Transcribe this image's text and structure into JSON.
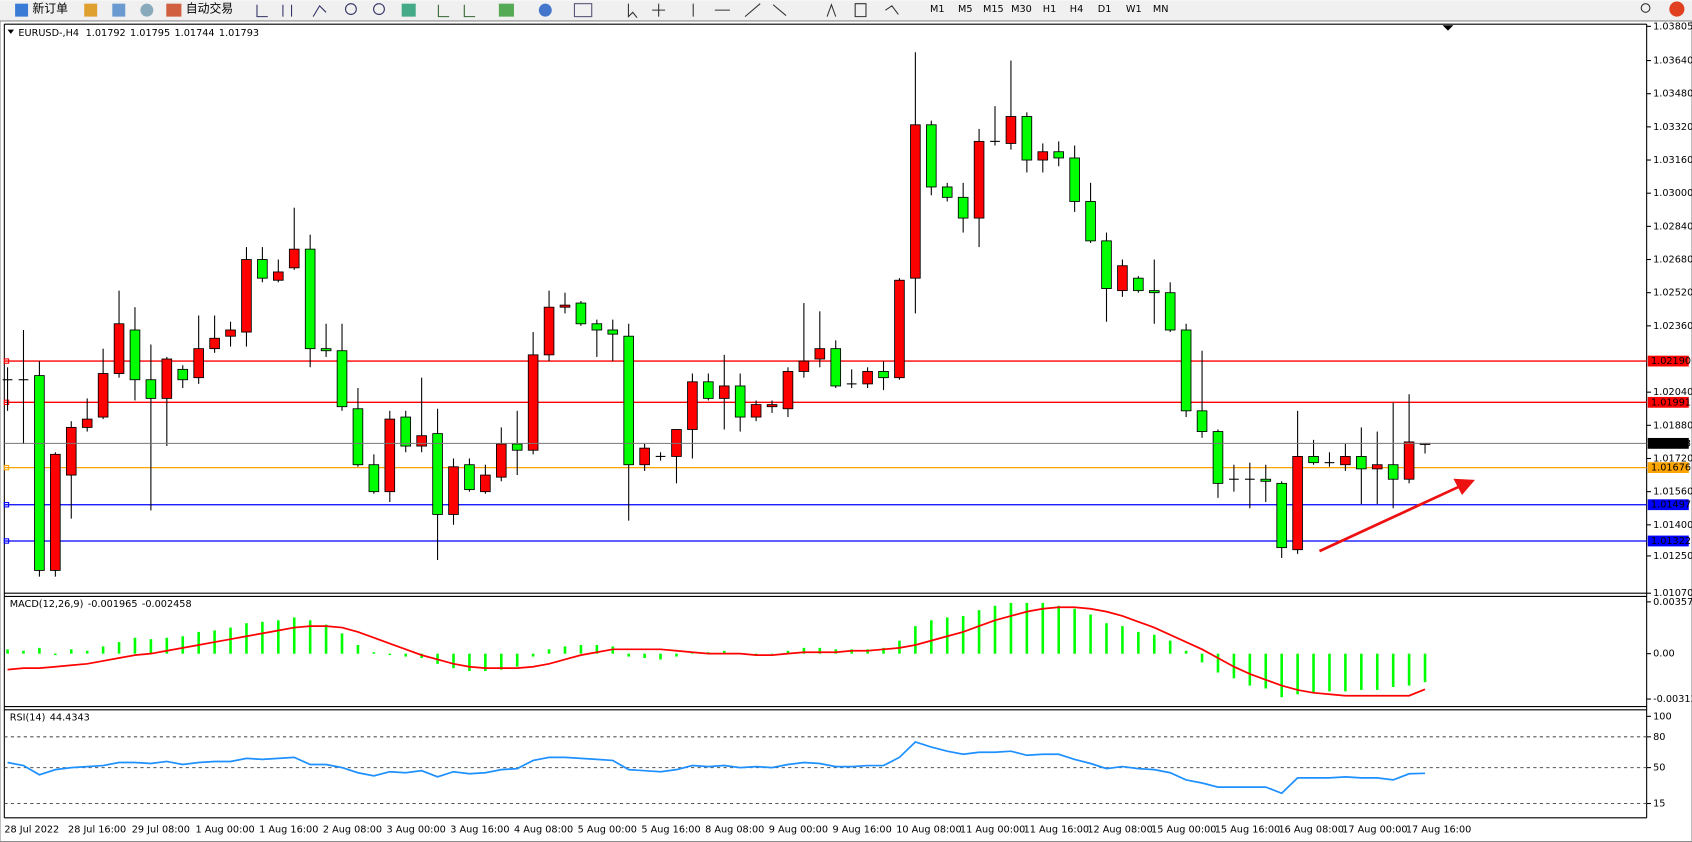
{
  "toolbar": {
    "new_order": "新订单",
    "auto_trading": "自动交易",
    "timeframes": [
      "M1",
      "M5",
      "M15",
      "M30",
      "H1",
      "H4",
      "D1",
      "W1",
      "MN"
    ]
  },
  "chart_data": [
    {
      "type": "candlestick",
      "title": "EURUSD-,H4",
      "categories": [
        "28 Jul 2022",
        null,
        null,
        null,
        "28 Jul 16:00",
        null,
        null,
        null,
        "29 Jul 08:00",
        null,
        null,
        null,
        "1 Aug 00:00",
        null,
        null,
        null,
        "1 Aug 16:00",
        null,
        null,
        null,
        "2 Aug 08:00",
        null,
        null,
        null,
        "3 Aug 00:00",
        null,
        null,
        null,
        "3 Aug 16:00",
        null,
        null,
        null,
        "4 Aug 08:00",
        null,
        null,
        null,
        "5 Aug 00:00",
        null,
        null,
        null,
        "5 Aug 16:00",
        null,
        null,
        null,
        "8 Aug 08:00",
        null,
        null,
        null,
        "9 Aug 00:00",
        null,
        null,
        null,
        "9 Aug 16:00",
        null,
        null,
        null,
        "10 Aug 08:00",
        null,
        null,
        null,
        "11 Aug 00:00",
        null,
        null,
        null,
        "11 Aug 16:00",
        null,
        null,
        null,
        "12 Aug 08:00",
        null,
        null,
        null,
        "15 Aug 00:00",
        null,
        null,
        null,
        "15 Aug 16:00",
        null,
        null,
        null,
        "16 Aug 08:00",
        null,
        null,
        null,
        "17 Aug 00:00",
        null,
        null,
        null,
        "17 Aug 16:00",
        null
      ],
      "candles": [
        [
          1.021,
          1.0216,
          1.0195,
          1.021
        ],
        [
          1.021,
          1.0234,
          1.0179,
          1.021
        ],
        [
          1.0212,
          1.0219,
          1.0115,
          1.0118
        ],
        [
          1.0118,
          1.0175,
          1.0115,
          1.0174
        ],
        [
          1.0164,
          1.019,
          1.0143,
          1.0187
        ],
        [
          1.0187,
          1.0201,
          1.0185,
          1.0191
        ],
        [
          1.0192,
          1.0225,
          1.0191,
          1.0213
        ],
        [
          1.0213,
          1.0253,
          1.0211,
          1.0237
        ],
        [
          1.0234,
          1.0245,
          1.02,
          1.021
        ],
        [
          1.021,
          1.0227,
          1.0147,
          1.0201
        ],
        [
          1.0201,
          1.0221,
          1.0178,
          1.022
        ],
        [
          1.0215,
          1.0217,
          1.0206,
          1.021
        ],
        [
          1.0211,
          1.0241,
          1.0208,
          1.0225
        ],
        [
          1.0225,
          1.0241,
          1.0223,
          1.023
        ],
        [
          1.0231,
          1.0238,
          1.0226,
          1.0234
        ],
        [
          1.0233,
          1.0274,
          1.0226,
          1.0268
        ],
        [
          1.0268,
          1.0274,
          1.0257,
          1.0259
        ],
        [
          1.0258,
          1.0268,
          1.0257,
          1.0262
        ],
        [
          1.0264,
          1.0293,
          1.0263,
          1.0273
        ],
        [
          1.0273,
          1.028,
          1.0216,
          1.0225
        ],
        [
          1.0225,
          1.0237,
          1.0221,
          1.0224
        ],
        [
          1.0224,
          1.0237,
          1.0195,
          1.0197
        ],
        [
          1.0196,
          1.0206,
          1.0168,
          1.0169
        ],
        [
          1.0169,
          1.0174,
          1.0155,
          1.0156
        ],
        [
          1.0156,
          1.0195,
          1.0151,
          1.0191
        ],
        [
          1.0192,
          1.0195,
          1.0175,
          1.0178
        ],
        [
          1.0178,
          1.0211,
          1.0175,
          1.0183
        ],
        [
          1.0184,
          1.0196,
          1.0123,
          1.0145
        ],
        [
          1.0145,
          1.0172,
          1.014,
          1.0168
        ],
        [
          1.0169,
          1.0172,
          1.0156,
          1.0157
        ],
        [
          1.0156,
          1.0169,
          1.0155,
          1.0164
        ],
        [
          1.0163,
          1.0187,
          1.0161,
          1.0179
        ],
        [
          1.0179,
          1.0195,
          1.0164,
          1.0176
        ],
        [
          1.0176,
          1.0233,
          1.0174,
          1.0222
        ],
        [
          1.0222,
          1.0253,
          1.0219,
          1.0245
        ],
        [
          1.0245,
          1.0252,
          1.0242,
          1.0246
        ],
        [
          1.0247,
          1.0248,
          1.0236,
          1.0237
        ],
        [
          1.0237,
          1.0239,
          1.0221,
          1.0234
        ],
        [
          1.0234,
          1.0239,
          1.0219,
          1.0232
        ],
        [
          1.0231,
          1.0237,
          1.0142,
          1.0169
        ],
        [
          1.0169,
          1.0179,
          1.0166,
          1.0177
        ],
        [
          1.0173,
          1.0175,
          1.0171,
          1.0173
        ],
        [
          1.0173,
          1.0186,
          1.016,
          1.0186
        ],
        [
          1.0186,
          1.0213,
          1.0172,
          1.0209
        ],
        [
          1.0209,
          1.0213,
          1.02,
          1.0201
        ],
        [
          1.0201,
          1.0222,
          1.0186,
          1.0207
        ],
        [
          1.0207,
          1.0213,
          1.0185,
          1.0192
        ],
        [
          1.0192,
          1.02,
          1.019,
          1.0198
        ],
        [
          1.0197,
          1.02,
          1.0194,
          1.0198
        ],
        [
          1.0196,
          1.0216,
          1.0192,
          1.0214
        ],
        [
          1.0214,
          1.0247,
          1.0211,
          1.0219
        ],
        [
          1.022,
          1.0243,
          1.0216,
          1.0225
        ],
        [
          1.0225,
          1.0229,
          1.0206,
          1.0207
        ],
        [
          1.0208,
          1.0215,
          1.0206,
          1.0208
        ],
        [
          1.0208,
          1.0216,
          1.0206,
          1.0214
        ],
        [
          1.0214,
          1.0219,
          1.0205,
          1.0211
        ],
        [
          1.0211,
          1.0259,
          1.021,
          1.0258
        ],
        [
          1.0259,
          1.0368,
          1.0242,
          1.0333
        ],
        [
          1.0333,
          1.0335,
          1.0299,
          1.0303
        ],
        [
          1.0303,
          1.0305,
          1.0296,
          1.0298
        ],
        [
          1.0298,
          1.0305,
          1.0281,
          1.0288
        ],
        [
          1.0288,
          1.0331,
          1.0274,
          1.0325
        ],
        [
          1.0325,
          1.0342,
          1.0323,
          1.0325
        ],
        [
          1.0324,
          1.0364,
          1.0321,
          1.0337
        ],
        [
          1.0337,
          1.0339,
          1.031,
          1.0316
        ],
        [
          1.0316,
          1.0324,
          1.031,
          1.032
        ],
        [
          1.032,
          1.0325,
          1.0313,
          1.0317
        ],
        [
          1.0317,
          1.0323,
          1.0291,
          1.0296
        ],
        [
          1.0296,
          1.0305,
          1.0276,
          1.0277
        ],
        [
          1.0277,
          1.0281,
          1.0238,
          1.0254
        ],
        [
          1.0253,
          1.0268,
          1.025,
          1.0265
        ],
        [
          1.0259,
          1.026,
          1.0252,
          1.0253
        ],
        [
          1.0253,
          1.0268,
          1.0237,
          1.0252
        ],
        [
          1.0252,
          1.0257,
          1.0233,
          1.0234
        ],
        [
          1.0234,
          1.0237,
          1.0192,
          1.0195
        ],
        [
          1.0195,
          1.0224,
          1.0182,
          1.0185
        ],
        [
          1.0185,
          1.0186,
          1.0153,
          1.016
        ],
        [
          1.0162,
          1.0169,
          1.0156,
          1.0162
        ],
        [
          1.0162,
          1.017,
          1.0148,
          1.0162
        ],
        [
          1.0162,
          1.0169,
          1.0151,
          1.0161
        ],
        [
          1.016,
          1.0161,
          1.0124,
          1.0129
        ],
        [
          1.0128,
          1.0195,
          1.0126,
          1.0173
        ],
        [
          1.0173,
          1.0181,
          1.0169,
          1.017
        ],
        [
          1.017,
          1.0175,
          1.0168,
          1.017
        ],
        [
          1.0169,
          1.0179,
          1.0166,
          1.0173
        ],
        [
          1.0173,
          1.0187,
          1.015,
          1.0167
        ],
        [
          1.0167,
          1.0185,
          1.015,
          1.0169
        ],
        [
          1.0169,
          1.0199,
          1.0148,
          1.0162
        ],
        [
          1.0162,
          1.0203,
          1.016,
          1.018
        ],
        [
          1.01792,
          1.01795,
          1.01744,
          1.01793
        ]
      ],
      "up_color": "#ff0000",
      "down_color": "#00ff00",
      "ylim": [
        1.0107,
        1.03805
      ],
      "yticks": [
        1.03805,
        {
          "value": 1.0364,
          "label": "1.03640"
        },
        {
          "value": 1.0348,
          "label": "1.03480"
        },
        {
          "value": 1.0332,
          "label": "1.03320"
        },
        {
          "value": 1.0316,
          "label": "1.03160"
        },
        {
          "value": 1.03,
          "label": "1.03000"
        },
        {
          "value": 1.0284,
          "label": "1.02840"
        },
        {
          "value": 1.0268,
          "label": "1.02680"
        },
        {
          "value": 1.0252,
          "label": "1.02520"
        },
        {
          "value": 1.0236,
          "label": "1.02360"
        },
        {
          "value": 1.0204,
          "label": "1.02040"
        },
        {
          "value": 1.0188,
          "label": "1.01880"
        },
        {
          "value": 1.0172,
          "label": "1.01720"
        },
        {
          "value": 1.0156,
          "label": "1.01560"
        },
        {
          "value": 1.014,
          "label": "1.01400"
        },
        {
          "value": 1.0125,
          "label": "1.01250"
        },
        {
          "value": 1.0107,
          "label": "1.01070"
        }
      ],
      "levels": [
        {
          "value": 1.0219,
          "label": "1.02190",
          "color": "#ff0000"
        },
        {
          "value": 1.01991,
          "label": "1.01991",
          "color": "#ff0000"
        },
        {
          "value": 1.01676,
          "label": "1.01676",
          "color": "#ffa500"
        },
        {
          "value": 1.01497,
          "label": "1.01497",
          "color": "#0000ff"
        },
        {
          "value": 1.01322,
          "label": "1.01322",
          "color": "#0000ff"
        }
      ]
    },
    {
      "type": "macd",
      "title": "MACD(12,26,9)",
      "histogram": {
        "color": "#00ff00",
        "values": [
          0.0003,
          0.0002,
          0.0004,
          -0.0001,
          0.0003,
          0.0002,
          0.0005,
          0.0008,
          0.0011,
          0.001,
          0.0011,
          0.0012,
          0.0015,
          0.0016,
          0.0018,
          0.0021,
          0.0022,
          0.0023,
          0.0025,
          0.0023,
          0.002,
          0.0014,
          0.0006,
          0.0001,
          -0.0001,
          -0.0002,
          -0.0003,
          -0.0007,
          -0.001,
          -0.0012,
          -0.0012,
          -0.0011,
          -0.0009,
          -0.0002,
          0.0003,
          0.0005,
          0.0006,
          0.0006,
          0.0005,
          -0.0002,
          -0.0003,
          -0.0004,
          -0.0002,
          0.0001,
          0.0001,
          0.0002,
          0,
          -0.0001,
          0,
          0.0002,
          0.0004,
          0.0004,
          0.0003,
          0.0003,
          0.0003,
          0.0004,
          0.0009,
          0.0019,
          0.0023,
          0.0025,
          0.0026,
          0.003,
          0.0033,
          0.0035,
          0.0035,
          0.0035,
          0.0033,
          0.0031,
          0.0027,
          0.0021,
          0.0019,
          0.0015,
          0.0013,
          0.0009,
          0.0002,
          -0.0006,
          -0.0013,
          -0.0017,
          -0.0022,
          -0.0024,
          -0.003,
          -0.0028,
          -0.0027,
          -0.0026,
          -0.0026,
          -0.0025,
          -0.0025,
          -0.0023,
          -0.0022,
          -0.001965
        ]
      },
      "signal": {
        "color": "#ff0000",
        "values": [
          -0.0011,
          -0.001,
          -0.001,
          -0.0009,
          -0.0008,
          -0.0007,
          -0.0005,
          -0.0003,
          -0.0001,
          0,
          0.0002,
          0.0004,
          0.0006,
          0.0008,
          0.001,
          0.0012,
          0.0014,
          0.0016,
          0.0018,
          0.0019,
          0.0019,
          0.0018,
          0.0015,
          0.0011,
          0.0007,
          0.0003,
          -0.0001,
          -0.0004,
          -0.0007,
          -0.0009,
          -0.001,
          -0.001,
          -0.001,
          -0.0009,
          -0.0007,
          -0.0004,
          -0.0001,
          0.0001,
          0.0003,
          0.0003,
          0.0003,
          0.0003,
          0.0002,
          0.0001,
          0,
          0,
          0,
          -0.0001,
          -0.0001,
          0,
          0.0001,
          0.0001,
          0.0001,
          0.0002,
          0.0002,
          0.0003,
          0.0004,
          0.0006,
          0.0009,
          0.0012,
          0.0015,
          0.0019,
          0.0023,
          0.0026,
          0.0029,
          0.0031,
          0.0032,
          0.0032,
          0.0031,
          0.0029,
          0.0026,
          0.0022,
          0.0018,
          0.0013,
          0.0008,
          0.0003,
          -0.0003,
          -0.0009,
          -0.0014,
          -0.0018,
          -0.0022,
          -0.0025,
          -0.0027,
          -0.0028,
          -0.0029,
          -0.0029,
          -0.0029,
          -0.0029,
          -0.0029,
          -0.002458
        ]
      },
      "ylim": [
        -0.003129,
        0.003573
      ],
      "yticks": [
        0.003573,
        {
          "value": 0,
          "label": "0.00"
        },
        -0.003129
      ]
    },
    {
      "type": "line",
      "title": "RSI(14)",
      "color": "#1e90ff",
      "values": [
        55,
        52,
        43,
        48,
        50,
        51,
        52,
        55,
        55,
        54,
        56,
        53,
        55,
        56,
        56,
        59,
        58,
        59,
        60,
        53,
        53,
        50,
        45,
        42,
        46,
        45,
        47,
        41,
        46,
        44,
        45,
        48,
        49,
        57,
        60,
        60,
        59,
        58,
        57,
        48,
        47,
        46,
        48,
        52,
        51,
        52,
        50,
        51,
        50,
        53,
        55,
        54,
        51,
        51,
        52,
        52,
        60,
        75,
        70,
        66,
        63,
        65,
        65,
        66,
        62,
        63,
        63,
        58,
        54,
        49,
        51,
        49,
        48,
        45,
        38,
        35,
        31,
        31,
        31,
        31,
        25,
        40,
        40,
        40,
        41,
        40,
        40,
        38,
        44,
        44.4343
      ],
      "ylim": [
        0,
        100
      ],
      "yticks": [
        15,
        50,
        80,
        100
      ],
      "grid": "dashed"
    }
  ]
}
